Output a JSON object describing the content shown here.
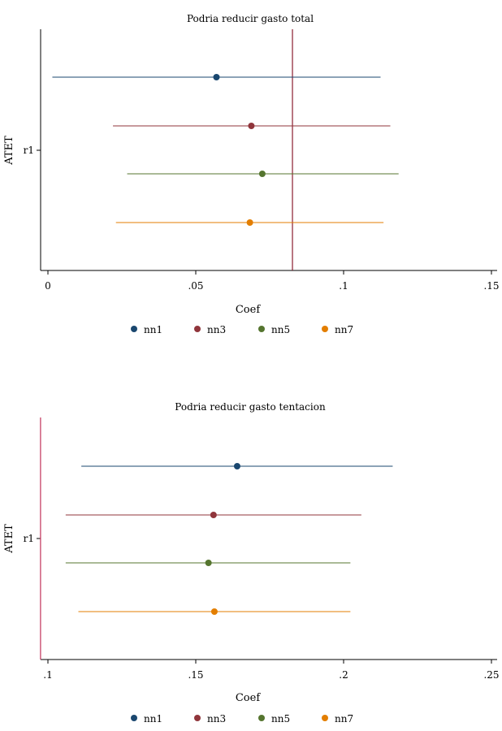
{
  "chart_data": [
    {
      "type": "scatter",
      "title": "Podria reducir gasto total",
      "xlabel": "Coef",
      "ylabel": "ATET",
      "y_category": "r1",
      "xlim": [
        0,
        0.15
      ],
      "xticks": [
        0,
        0.05,
        0.1,
        0.15
      ],
      "xtick_labels": [
        "0",
        ".05",
        ".1",
        ".15"
      ],
      "reference_line": {
        "x": 0.0827,
        "color": "#8b1c2e"
      },
      "series": [
        {
          "name": "nn1",
          "coef": 0.057,
          "ci": [
            0.0015,
            0.1125
          ],
          "color": "#1a476f"
        },
        {
          "name": "nn3",
          "coef": 0.0688,
          "ci": [
            0.022,
            0.1158
          ],
          "color": "#90353b"
        },
        {
          "name": "nn5",
          "coef": 0.0725,
          "ci": [
            0.0268,
            0.1186
          ],
          "color": "#55752f"
        },
        {
          "name": "nn7",
          "coef": 0.0683,
          "ci": [
            0.023,
            0.1135
          ],
          "color": "#e37e00"
        }
      ],
      "legend_position": "bottom"
    },
    {
      "type": "scatter",
      "title": "Podria reducir gasto tentacion",
      "xlabel": "Coef",
      "ylabel": "ATET",
      "y_category": "r1",
      "xlim": [
        0.1,
        0.25
      ],
      "xticks": [
        0.1,
        0.15,
        0.2,
        0.25
      ],
      "xtick_labels": [
        ".1",
        ".15",
        ".2",
        ".25"
      ],
      "reference_line": {
        "x": 0.0975,
        "color": "#c1325a"
      },
      "series": [
        {
          "name": "nn1",
          "coef": 0.164,
          "ci": [
            0.1113,
            0.2166
          ],
          "color": "#1a476f"
        },
        {
          "name": "nn3",
          "coef": 0.156,
          "ci": [
            0.106,
            0.206
          ],
          "color": "#90353b"
        },
        {
          "name": "nn5",
          "coef": 0.1543,
          "ci": [
            0.106,
            0.2023
          ],
          "color": "#55752f"
        },
        {
          "name": "nn7",
          "coef": 0.1563,
          "ci": [
            0.1103,
            0.2023
          ],
          "color": "#e37e00"
        }
      ],
      "legend_position": "bottom"
    }
  ]
}
